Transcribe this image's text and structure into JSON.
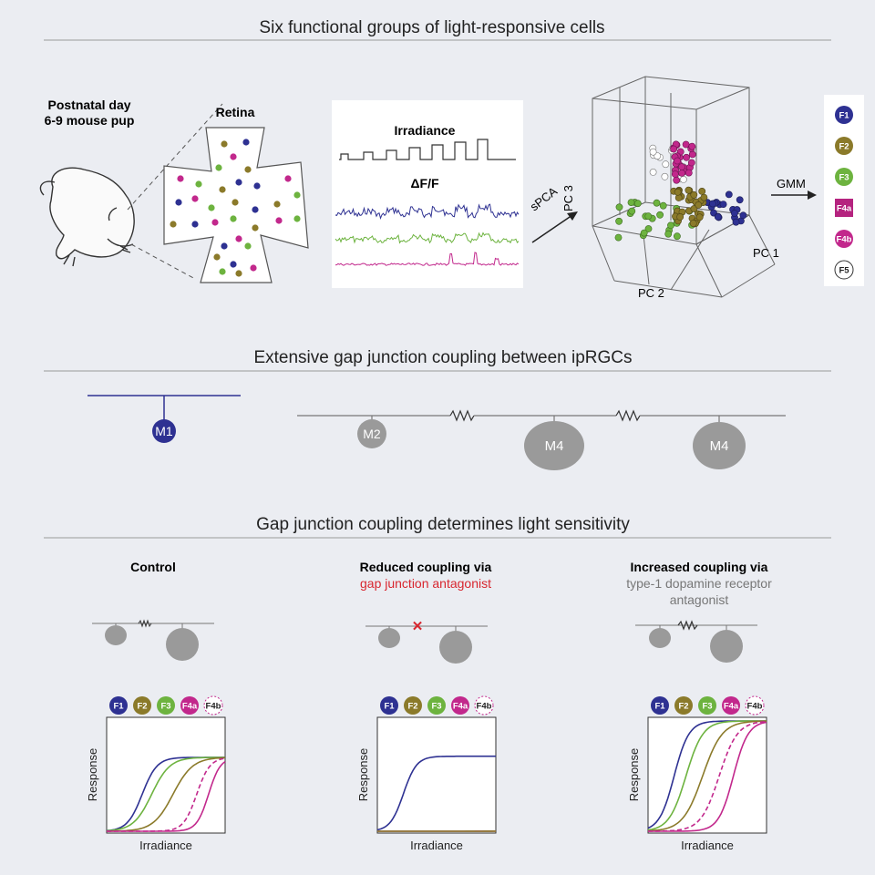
{
  "sections": {
    "s1_title": "Six functional groups of light-responsive cells",
    "s2_title": "Extensive gap junction coupling between ipRGCs",
    "s3_title": "Gap junction coupling determines light sensitivity"
  },
  "s1": {
    "pup_line1": "Postnatal day",
    "pup_line2": "6-9 mouse pup",
    "retina_label": "Retina",
    "irradiance_label": "Irradiance",
    "dff_label": "ΔF/F",
    "spca_label": "sPCA",
    "gmm_label": "GMM",
    "pc1": "PC 1",
    "pc2": "PC 2",
    "pc3": "PC 3"
  },
  "groups": [
    {
      "id": "F1",
      "color": "#2e3192"
    },
    {
      "id": "F2",
      "color": "#8b7a2a"
    },
    {
      "id": "F3",
      "color": "#6db33f"
    },
    {
      "id": "F4a",
      "color": "#b5237f"
    },
    {
      "id": "F4b",
      "color": "#c2288c"
    },
    {
      "id": "F5",
      "color": "#ffffff"
    }
  ],
  "s2": {
    "m1": "M1",
    "m2": "M2",
    "m4a": "M4",
    "m4b": "M4"
  },
  "s3": {
    "control_title": "Control",
    "reduced_title": "Reduced coupling via",
    "reduced_sub": "gap junction antagonist",
    "increased_title": "Increased coupling via",
    "increased_sub1": "type-1 dopamine receptor",
    "increased_sub2": "antagonist",
    "badges": [
      "F1",
      "F2",
      "F3",
      "F4a",
      "F4b"
    ],
    "ylabel": "Response",
    "xlabel": "Irradiance"
  },
  "colors": {
    "f1": "#2e3192",
    "f2": "#8b7a2a",
    "f3": "#6db33f",
    "f4": "#c2288c",
    "cell_gray": "#9a9a9a",
    "red": "#d8262f"
  }
}
